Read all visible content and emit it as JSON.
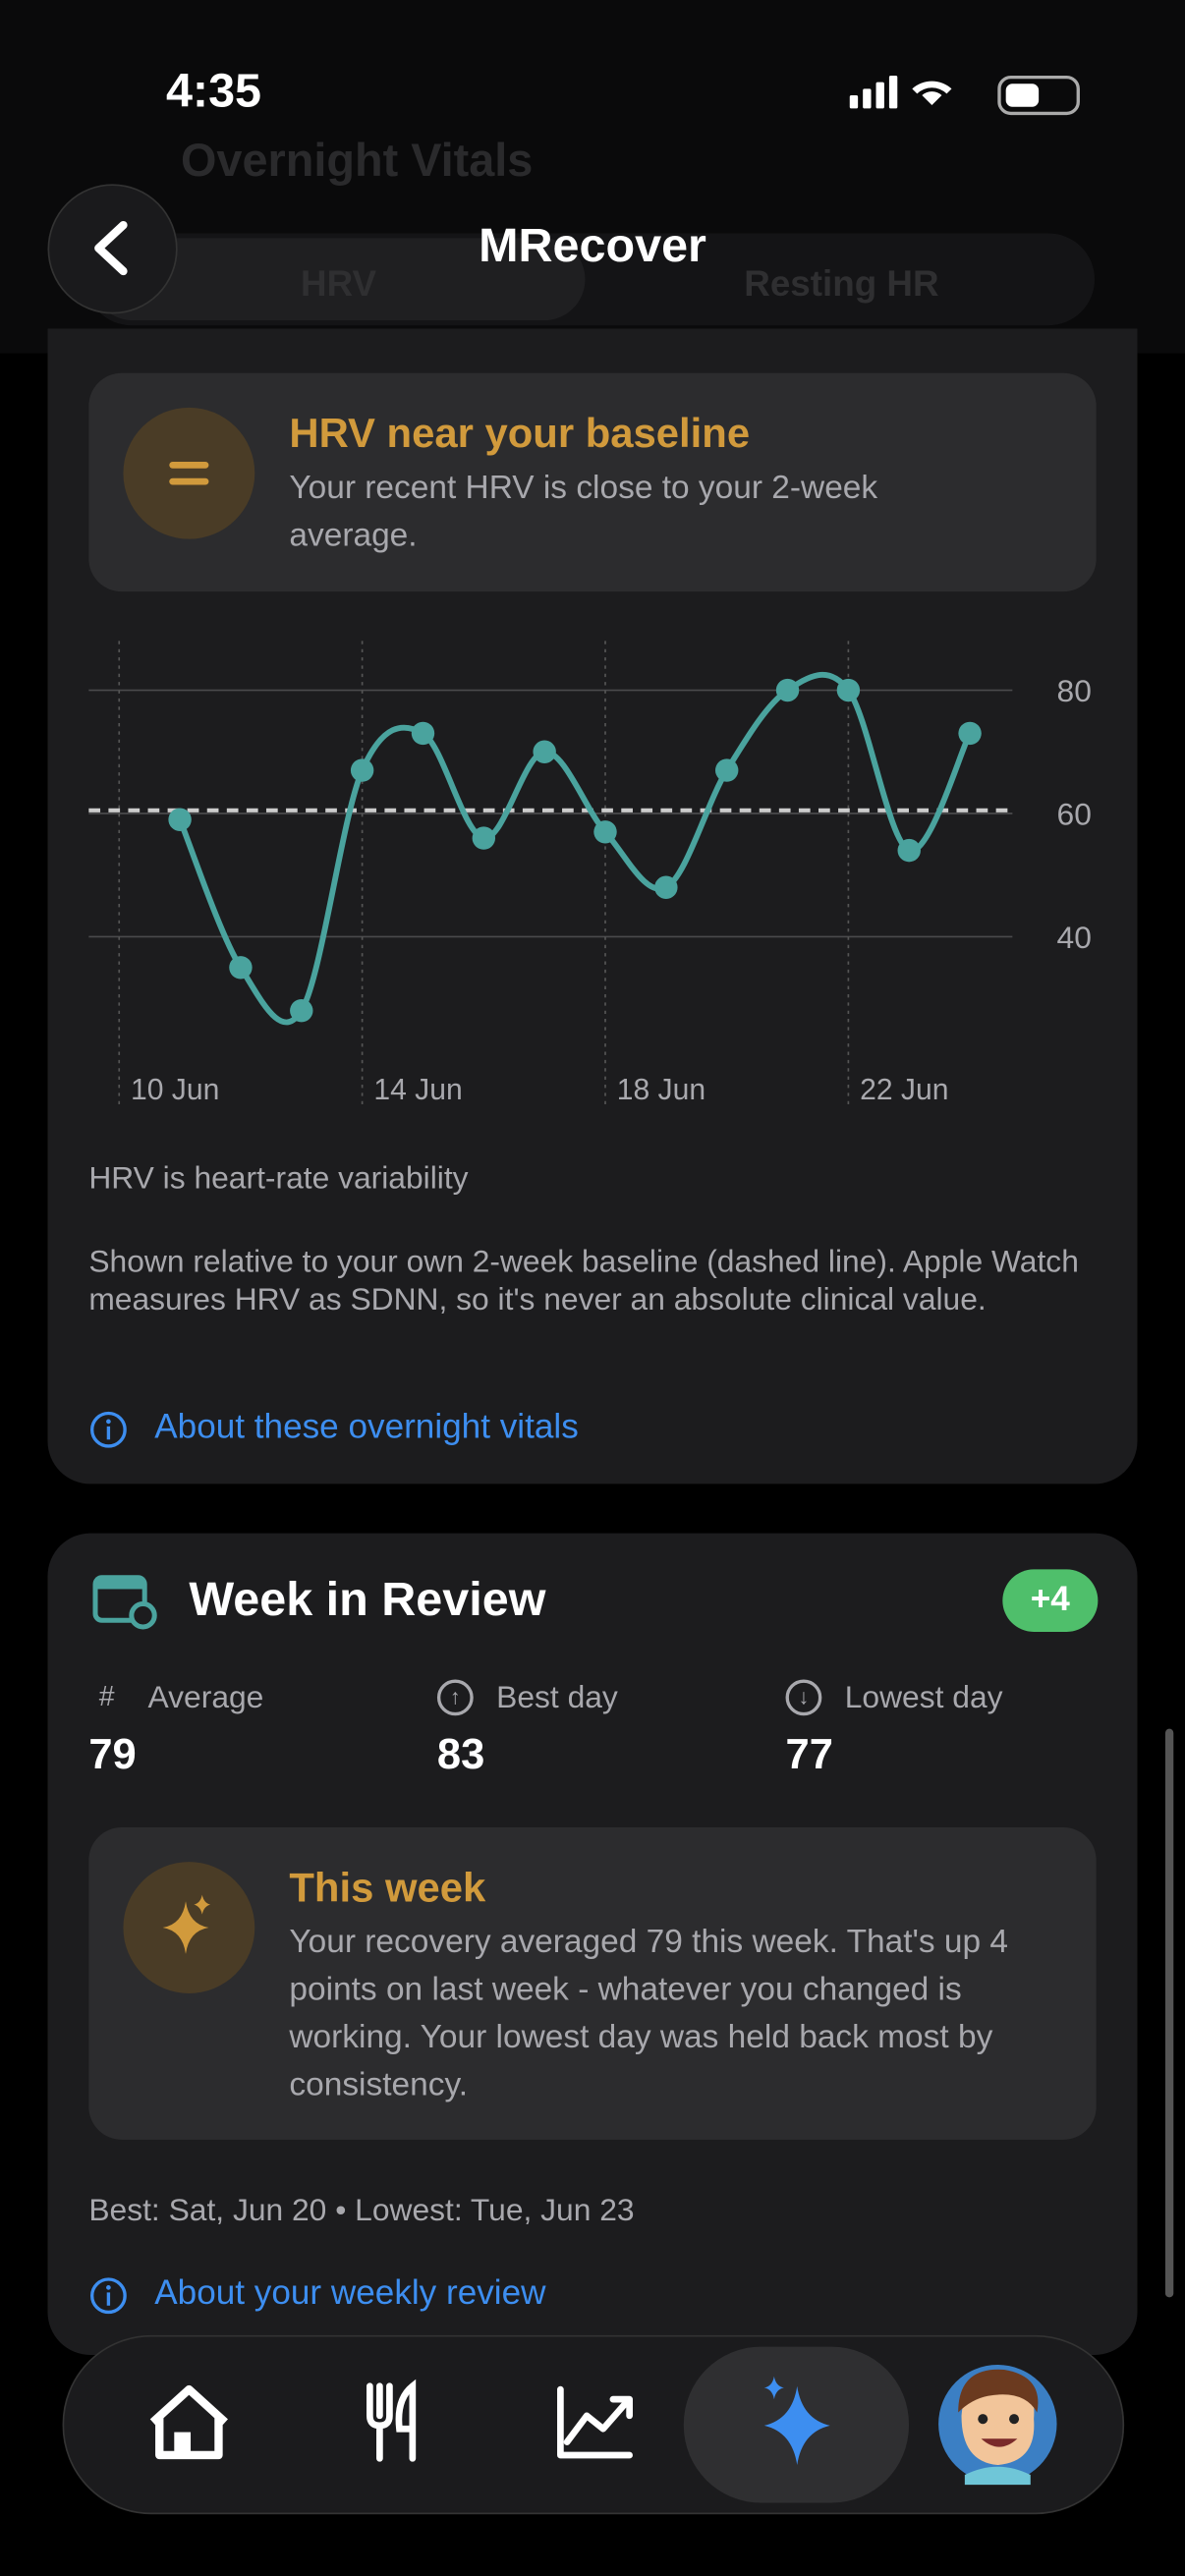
{
  "status_bar": {
    "time": "4:35"
  },
  "header": {
    "title": "MRecover"
  },
  "vitals": {
    "title": "Overnight Vitals",
    "tabs": [
      "HRV",
      "Resting HR"
    ],
    "insight": {
      "title": "HRV near your baseline",
      "text": "Your recent HRV is close to your 2-week average."
    },
    "chart_data": {
      "type": "line",
      "x": [
        11,
        12,
        13,
        14,
        15,
        16,
        17,
        18,
        19,
        20,
        21,
        22,
        23,
        24
      ],
      "series": [
        {
          "name": "HRV",
          "color": "#4aa39e",
          "values": [
            59,
            35,
            28,
            67,
            73,
            56,
            70,
            57,
            48,
            67,
            80,
            80,
            54,
            73
          ]
        }
      ],
      "baseline": 60.5,
      "xlim": [
        9.5,
        24.7
      ],
      "xticks": [
        {
          "value": 10,
          "label": "10 Jun"
        },
        {
          "value": 14,
          "label": "14 Jun"
        },
        {
          "value": 18,
          "label": "18 Jun"
        },
        {
          "value": 22,
          "label": "22 Jun"
        }
      ],
      "ylim": [
        20,
        88
      ],
      "yticks": [
        40,
        60,
        80
      ],
      "grid": true
    },
    "caption": "HRV is heart-rate variability",
    "note": "Shown relative to your own 2-week baseline (dashed line). Apple Watch measures HRV as SDNN, so it's never an absolute clinical value.",
    "link": "About these overnight vitals"
  },
  "week": {
    "title": "Week in Review",
    "badge": "+4",
    "stats": [
      {
        "label": "Average",
        "value": 79
      },
      {
        "label": "Best day",
        "value": 83
      },
      {
        "label": "Lowest day",
        "value": 77
      }
    ],
    "insight": {
      "title": "This week",
      "text": "Your recovery averaged 79 this week. That's up 4 points on last week - whatever you changed is working. Your lowest day was held back most by consistency."
    },
    "footer": "Best: Sat, Jun 20 • Lowest: Tue, Jun 23",
    "link": "About your weekly review"
  }
}
